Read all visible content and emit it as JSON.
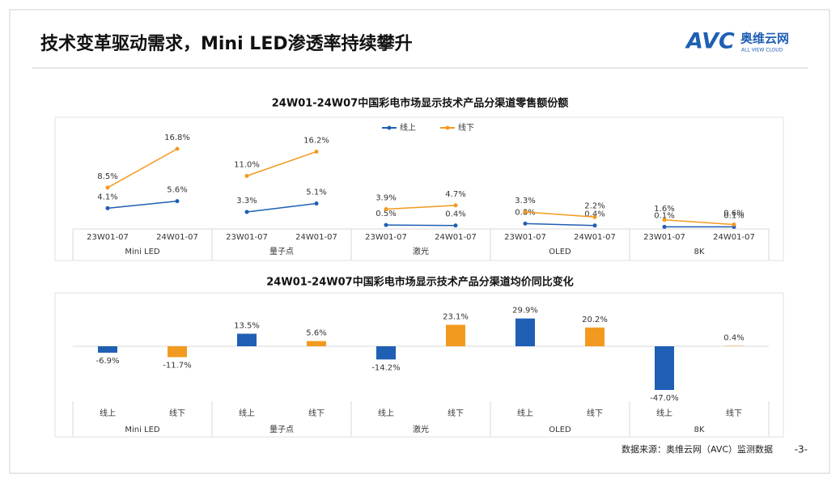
{
  "header": {
    "title": "技术变革驱动需求，Mini LED渗透率持续攀升",
    "logo_mark": "AVC",
    "logo_name": "奥维云网",
    "logo_tagline": "ALL VIEW CLOUD"
  },
  "chart_data": [
    {
      "type": "line",
      "title": "24W01-24W07中国彩电市场显示技术产品分渠道零售额份额",
      "groups": [
        "Mini LED",
        "量子点",
        "激光",
        "OLED",
        "8K"
      ],
      "categories": [
        "23W01-07",
        "24W01-07",
        "23W01-07",
        "24W01-07",
        "23W01-07",
        "24W01-07",
        "23W01-07",
        "24W01-07",
        "23W01-07",
        "24W01-07"
      ],
      "series": [
        {
          "name": "线上",
          "color": "#1f5fb4",
          "values": [
            4.1,
            5.6,
            3.3,
            5.1,
            0.5,
            0.4,
            0.8,
            0.4,
            0.1,
            0.1
          ],
          "value_labels": [
            "4.1%",
            "5.6%",
            "3.3%",
            "5.1%",
            "0.5%",
            "0.4%",
            "0.8%",
            "0.4%",
            "0.1%",
            "0.1%"
          ]
        },
        {
          "name": "线下",
          "color": "#f29a1f",
          "values": [
            8.5,
            16.8,
            11.0,
            16.2,
            3.9,
            4.7,
            3.3,
            2.2,
            1.6,
            0.6
          ],
          "value_labels": [
            "8.5%",
            "16.8%",
            "11.0%",
            "16.2%",
            "3.9%",
            "4.7%",
            "3.3%",
            "2.2%",
            "1.6%",
            "0.6%"
          ]
        }
      ],
      "legend": "top"
    },
    {
      "type": "bar",
      "title": "24W01-24W07中国彩电市场显示技术产品分渠道均价同比变化",
      "groups": [
        "Mini LED",
        "量子点",
        "激光",
        "OLED",
        "8K"
      ],
      "categories": [
        "线上",
        "线下",
        "线上",
        "线下",
        "线上",
        "线下",
        "线上",
        "线下",
        "线上",
        "线下"
      ],
      "values": [
        -6.9,
        -11.7,
        13.5,
        5.6,
        -14.2,
        23.1,
        29.9,
        20.2,
        -47.0,
        0.4
      ],
      "value_labels": [
        "-6.9%",
        "-11.7%",
        "13.5%",
        "5.6%",
        "-14.2%",
        "23.1%",
        "29.9%",
        "20.2%",
        "-47.0%",
        "0.4%"
      ],
      "colors": [
        "#1f5fb4",
        "#f29a1f",
        "#1f5fb4",
        "#f29a1f",
        "#1f5fb4",
        "#f29a1f",
        "#1f5fb4",
        "#f29a1f",
        "#1f5fb4",
        "#f29a1f"
      ]
    }
  ],
  "footer": {
    "source": "数据来源：奥维云网（AVC）监测数据",
    "page": "-3-"
  }
}
